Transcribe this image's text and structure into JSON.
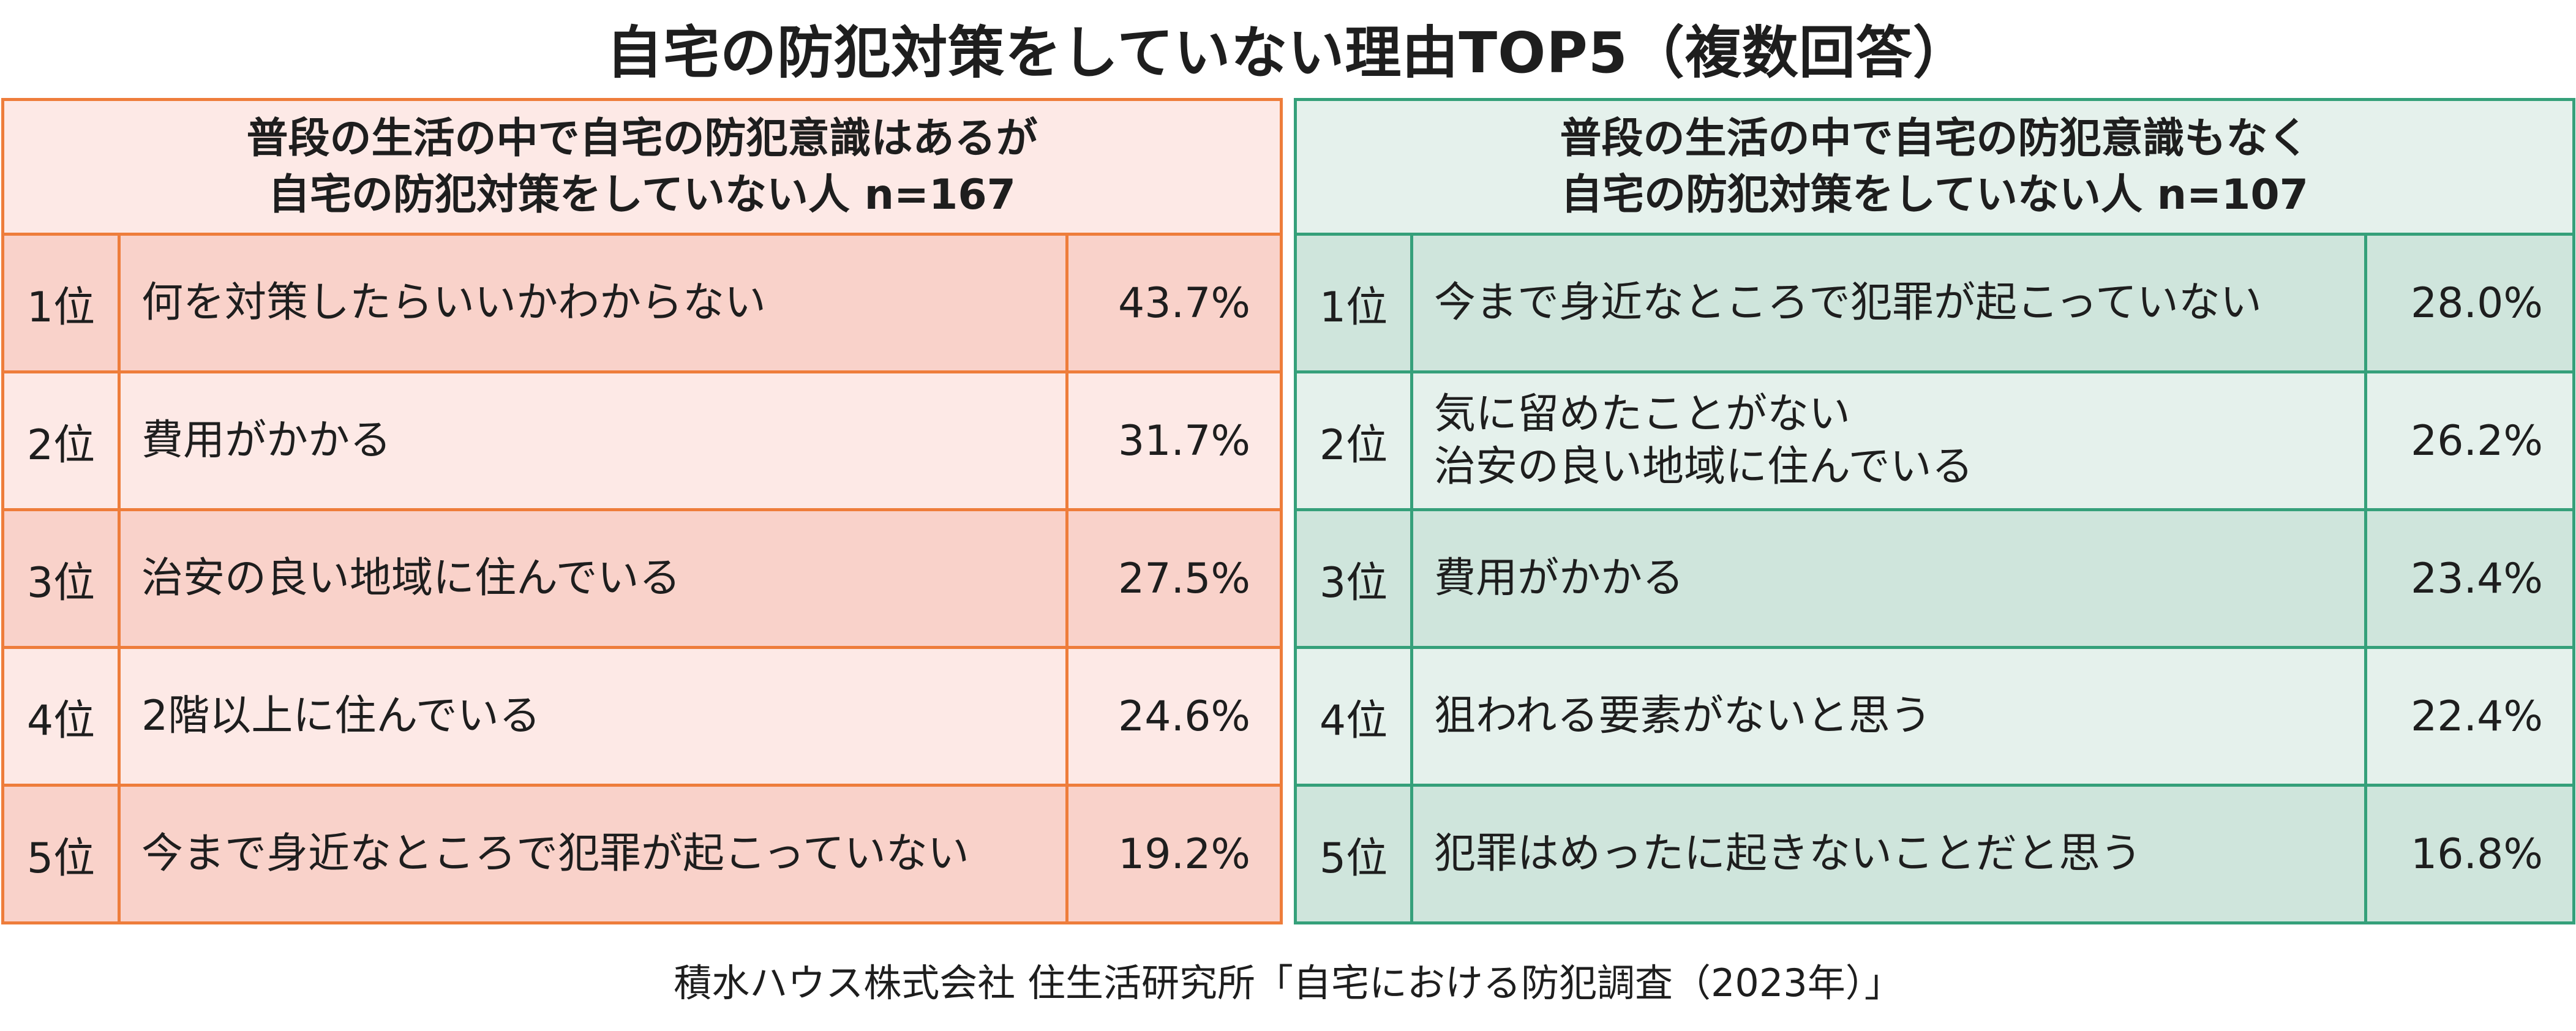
{
  "title": "自宅の防犯対策をしていない理由TOP5（複数回答）",
  "colors": {
    "left_border": "#ee7d3b",
    "left_header_bg": "#fde9e6",
    "left_row_dark": "#f9d2ca",
    "left_row_light": "#fde9e6",
    "right_border": "#35a07a",
    "right_header_bg": "#e5f1ec",
    "right_row_dark": "#cfe5dc",
    "right_row_light": "#e5f1ec"
  },
  "chart_data": [
    {
      "type": "table",
      "header_lines": [
        "普段の生活の中で自宅の防犯意識はあるが",
        "自宅の防犯対策をしていない人 n=167"
      ],
      "rows": [
        {
          "rank": "1位",
          "reason_lines": [
            "何を対策したらいいかわからない"
          ],
          "value": "43.7%"
        },
        {
          "rank": "2位",
          "reason_lines": [
            "費用がかかる"
          ],
          "value": "31.7%"
        },
        {
          "rank": "3位",
          "reason_lines": [
            "治安の良い地域に住んでいる"
          ],
          "value": "27.5%"
        },
        {
          "rank": "4位",
          "reason_lines": [
            "2階以上に住んでいる"
          ],
          "value": "24.6%"
        },
        {
          "rank": "5位",
          "reason_lines": [
            "今まで身近なところで犯罪が起こっていない"
          ],
          "value": "19.2%"
        }
      ]
    },
    {
      "type": "table",
      "header_lines": [
        "普段の生活の中で自宅の防犯意識もなく",
        "自宅の防犯対策をしていない人 n=107"
      ],
      "rows": [
        {
          "rank": "1位",
          "reason_lines": [
            "今まで身近なところで犯罪が起こっていない"
          ],
          "value": "28.0%"
        },
        {
          "rank": "2位",
          "reason_lines": [
            "気に留めたことがない",
            "治安の良い地域に住んでいる"
          ],
          "value": "26.2%"
        },
        {
          "rank": "3位",
          "reason_lines": [
            "費用がかかる"
          ],
          "value": "23.4%"
        },
        {
          "rank": "4位",
          "reason_lines": [
            "狙われる要素がないと思う"
          ],
          "value": "22.4%"
        },
        {
          "rank": "5位",
          "reason_lines": [
            "犯罪はめったに起きないことだと思う"
          ],
          "value": "16.8%"
        }
      ]
    }
  ],
  "source": "積水ハウス株式会社 住生活研究所「自宅における防犯調査（2023年）」"
}
